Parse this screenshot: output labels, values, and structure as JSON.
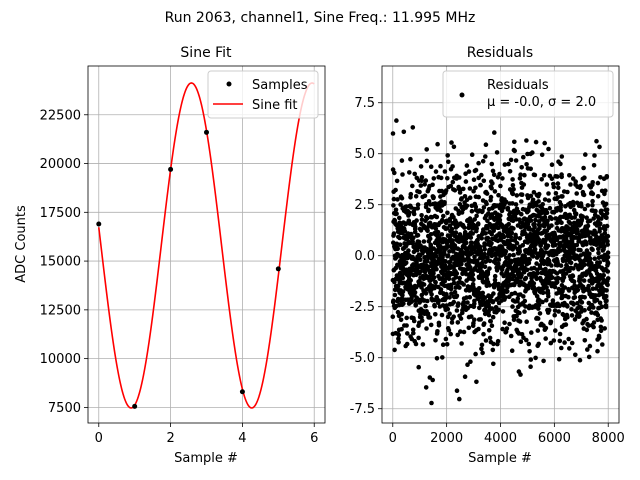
{
  "suptitle": "Run 2063, channel1, Sine Freq.: 11.995 MHz",
  "chart_data": [
    {
      "type": "line",
      "title": "Sine Fit",
      "xlabel": "Sample #",
      "ylabel": "ADC Counts",
      "xlim": [
        -0.3,
        6.3
      ],
      "ylim": [
        6700,
        25000
      ],
      "xticks": [
        0,
        2,
        4,
        6
      ],
      "yticks": [
        7500,
        10000,
        12500,
        15000,
        17500,
        20000,
        22500
      ],
      "grid": true,
      "legend_position": "top-right",
      "series": [
        {
          "name": "Samples",
          "kind": "points",
          "color": "#000000",
          "x": [
            0,
            1,
            2,
            3,
            4,
            5
          ],
          "y": [
            16900,
            7550,
            19700,
            21600,
            8300,
            14600
          ]
        },
        {
          "name": "Sine fit",
          "kind": "line",
          "color": "#ff0000",
          "fit": {
            "offset": 15800,
            "amplitude": 8330,
            "period": 3.36,
            "peak_x": 2.58
          },
          "x_range": [
            0,
            6
          ]
        }
      ],
      "legend": [
        "Samples",
        "Sine fit"
      ]
    },
    {
      "type": "scatter",
      "title": "Residuals",
      "xlabel": "Sample #",
      "ylabel": "",
      "xlim": [
        -400,
        8400
      ],
      "ylim": [
        -8.2,
        9.3
      ],
      "xticks": [
        0,
        2000,
        4000,
        6000,
        8000
      ],
      "yticks": [
        -7.5,
        -5.0,
        -2.5,
        0.0,
        2.5,
        5.0,
        7.5
      ],
      "grid": true,
      "legend_position": "top-right",
      "series": [
        {
          "name": "Residuals",
          "color": "#000000",
          "count": 8000,
          "mean": 0.0,
          "sigma": 2.0,
          "x_range": [
            0,
            8000
          ]
        }
      ],
      "legend": [
        "Residuals",
        "μ = -0.0, σ = 2.0"
      ]
    }
  ]
}
